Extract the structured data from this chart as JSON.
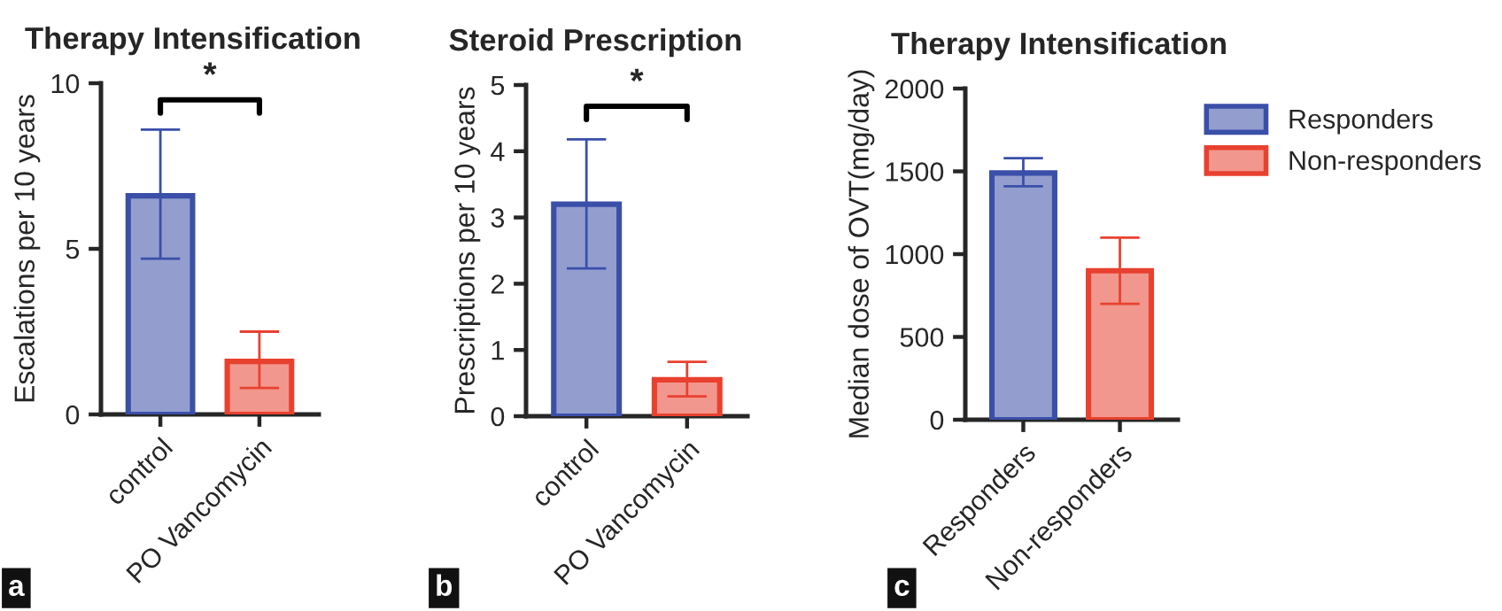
{
  "chart_data": [
    {
      "type": "bar",
      "title": "Therapy Intensification",
      "ylabel": "Escalations per 10 years",
      "categories": [
        "control",
        "PO Vancomycin"
      ],
      "values": [
        6.6,
        1.6
      ],
      "errors": [
        [
          4.7,
          8.6
        ],
        [
          0.8,
          2.5
        ]
      ],
      "colors": [
        "#3a4fa8",
        "#e8412f"
      ],
      "ylim": [
        0,
        10
      ],
      "yticks": [
        0,
        5,
        10
      ],
      "annotations": [
        "*",
        "a"
      ]
    },
    {
      "type": "bar",
      "title": "Steroid Prescription",
      "ylabel": "Prescriptions per 10 years",
      "categories": [
        "control",
        "PO Vancomycin"
      ],
      "values": [
        3.2,
        0.55
      ],
      "errors": [
        [
          2.23,
          4.18
        ],
        [
          0.3,
          0.82
        ]
      ],
      "colors": [
        "#3a4fa8",
        "#e8412f"
      ],
      "ylim": [
        0,
        5
      ],
      "yticks": [
        0,
        1,
        2,
        3,
        4,
        5
      ],
      "annotations": [
        "*",
        "b"
      ]
    },
    {
      "type": "bar",
      "title": "Therapy Intensification",
      "ylabel": "Median dose of OVT(mg/day)",
      "categories": [
        "Responders",
        "Non-responders"
      ],
      "series": [
        {
          "name": "Responders",
          "color": "#3a4fa8",
          "values": [
            1490,
            null
          ],
          "errors": [
            [
              1410,
              1580
            ],
            null
          ]
        },
        {
          "name": "Non-responders",
          "color": "#e8412f",
          "values": [
            null,
            900
          ],
          "errors": [
            null,
            [
              700,
              1100
            ]
          ]
        }
      ],
      "ylim": [
        0,
        2000
      ],
      "yticks": [
        0,
        500,
        1000,
        1500,
        2000
      ],
      "legend": "top right",
      "annotations": [
        "c"
      ]
    }
  ]
}
